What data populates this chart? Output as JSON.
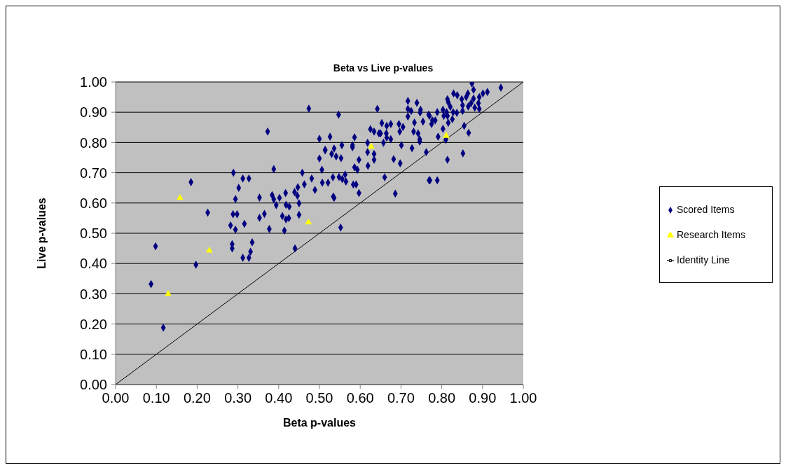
{
  "chart_data": {
    "type": "scatter",
    "title": "Beta vs Live p-values",
    "xlabel": "Beta p-values",
    "ylabel": "Live p-values",
    "xlim": [
      0,
      1
    ],
    "ylim": [
      0,
      1
    ],
    "xticks": [
      {
        "value": 0,
        "label": "0.00"
      },
      {
        "value": 0.1,
        "label": "0.10"
      },
      {
        "value": 0.2,
        "label": "0.20"
      },
      {
        "value": 0.3,
        "label": "0.30"
      },
      {
        "value": 0.4,
        "label": "0.40"
      },
      {
        "value": 0.5,
        "label": "0.50"
      },
      {
        "value": 0.6,
        "label": "0.60"
      },
      {
        "value": 0.7,
        "label": "0.70"
      },
      {
        "value": 0.8,
        "label": "0.80"
      },
      {
        "value": 0.9,
        "label": "0.90"
      },
      {
        "value": 1,
        "label": "1.00"
      }
    ],
    "yticks": [
      {
        "value": 0,
        "label": "0.00"
      },
      {
        "value": 0.1,
        "label": "0.10"
      },
      {
        "value": 0.2,
        "label": "0.20"
      },
      {
        "value": 0.3,
        "label": "0.30"
      },
      {
        "value": 0.4,
        "label": "0.40"
      },
      {
        "value": 0.5,
        "label": "0.50"
      },
      {
        "value": 0.6,
        "label": "0.60"
      },
      {
        "value": 0.7,
        "label": "0.70"
      },
      {
        "value": 0.8,
        "label": "0.80"
      },
      {
        "value": 0.9,
        "label": "0.90"
      },
      {
        "value": 1,
        "label": "1.00"
      }
    ],
    "grid": "y",
    "legend": "right",
    "series": [
      {
        "name": "Scored Items",
        "marker": "diamond",
        "color": "#000080",
        "x": [
          0.185,
          0.226,
          0.098,
          0.197,
          0.087,
          0.117,
          0.474,
          0.373,
          0.5,
          0.514,
          0.5,
          0.506,
          0.388,
          0.289,
          0.312,
          0.327,
          0.458,
          0.481,
          0.463,
          0.507,
          0.302,
          0.489,
          0.447,
          0.439,
          0.417,
          0.384,
          0.353,
          0.294,
          0.402,
          0.388,
          0.446,
          0.394,
          0.418,
          0.426,
          0.45,
          0.288,
          0.298,
          0.365,
          0.353,
          0.409,
          0.418,
          0.425,
          0.45,
          0.282,
          0.316,
          0.294,
          0.377,
          0.414,
          0.286,
          0.286,
          0.335,
          0.331,
          0.312,
          0.327,
          0.44,
          0.717,
          0.739,
          0.642,
          0.717,
          0.725,
          0.748,
          0.747,
          0.547,
          0.768,
          0.717,
          0.733,
          0.754,
          0.653,
          0.665,
          0.675,
          0.695,
          0.705,
          0.697,
          0.731,
          0.742,
          0.625,
          0.634,
          0.646,
          0.65,
          0.664,
          0.665,
          0.675,
          0.657,
          0.746,
          0.746,
          0.526,
          0.586,
          0.618,
          0.555,
          0.581,
          0.581,
          0.514,
          0.536,
          0.701,
          0.727,
          0.53,
          0.541,
          0.553,
          0.618,
          0.634,
          0.634,
          0.597,
          0.586,
          0.593,
          0.619,
          0.682,
          0.698,
          0.762,
          0.533,
          0.548,
          0.521,
          0.563,
          0.556,
          0.565,
          0.583,
          0.59,
          0.597,
          0.66,
          0.686,
          0.769,
          0.534,
          0.536,
          0.552,
          0.874,
          0.945,
          0.878,
          0.829,
          0.838,
          0.901,
          0.912,
          0.864,
          0.86,
          0.849,
          0.814,
          0.878,
          0.892,
          0.816,
          0.872,
          0.89,
          0.851,
          0.865,
          0.881,
          0.892,
          0.821,
          0.803,
          0.789,
          0.828,
          0.837,
          0.851,
          0.812,
          0.814,
          0.805,
          0.77,
          0.777,
          0.784,
          0.775,
          0.826,
          0.816,
          0.855,
          0.866,
          0.803,
          0.791,
          0.81,
          0.852,
          0.814,
          0.771,
          0.789
        ],
        "values": [
          0.669,
          0.568,
          0.457,
          0.396,
          0.332,
          0.188,
          0.912,
          0.836,
          0.812,
          0.774,
          0.747,
          0.71,
          0.712,
          0.7,
          0.681,
          0.681,
          0.7,
          0.681,
          0.662,
          0.667,
          0.65,
          0.643,
          0.652,
          0.636,
          0.633,
          0.626,
          0.618,
          0.613,
          0.617,
          0.612,
          0.624,
          0.593,
          0.594,
          0.588,
          0.599,
          0.563,
          0.563,
          0.564,
          0.551,
          0.557,
          0.546,
          0.55,
          0.561,
          0.526,
          0.531,
          0.512,
          0.514,
          0.509,
          0.464,
          0.45,
          0.47,
          0.439,
          0.419,
          0.419,
          0.45,
          0.937,
          0.931,
          0.911,
          0.911,
          0.904,
          0.908,
          0.899,
          0.892,
          0.892,
          0.886,
          0.866,
          0.869,
          0.864,
          0.855,
          0.861,
          0.861,
          0.851,
          0.836,
          0.836,
          0.83,
          0.844,
          0.836,
          0.83,
          0.83,
          0.83,
          0.816,
          0.811,
          0.799,
          0.811,
          0.803,
          0.819,
          0.817,
          0.799,
          0.791,
          0.791,
          0.784,
          0.776,
          0.78,
          0.791,
          0.781,
          0.762,
          0.754,
          0.748,
          0.768,
          0.762,
          0.743,
          0.743,
          0.718,
          0.71,
          0.723,
          0.745,
          0.731,
          0.768,
          0.685,
          0.686,
          0.667,
          0.694,
          0.679,
          0.671,
          0.661,
          0.661,
          0.633,
          0.685,
          0.631,
          0.675,
          0.621,
          0.617,
          0.519,
          0.995,
          0.981,
          0.974,
          0.962,
          0.956,
          0.962,
          0.967,
          0.962,
          0.95,
          0.943,
          0.943,
          0.945,
          0.95,
          0.933,
          0.93,
          0.93,
          0.923,
          0.919,
          0.915,
          0.911,
          0.918,
          0.908,
          0.9,
          0.9,
          0.898,
          0.904,
          0.9,
          0.888,
          0.888,
          0.888,
          0.873,
          0.873,
          0.861,
          0.877,
          0.865,
          0.855,
          0.832,
          0.845,
          0.819,
          0.809,
          0.764,
          0.743,
          0.675,
          0.675
        ]
      },
      {
        "name": "Research Items",
        "marker": "triangle",
        "color": "#ffff00",
        "x": [
          0.158,
          0.23,
          0.129,
          0.473,
          0.627,
          0.811
        ],
        "values": [
          0.617,
          0.443,
          0.299,
          0.536,
          0.786,
          0.822
        ]
      },
      {
        "name": "Identity Line",
        "type": "line",
        "marker": "none",
        "line_style": "solid",
        "color": "#000000",
        "x": [
          0,
          1
        ],
        "values": [
          0,
          1
        ]
      }
    ]
  }
}
